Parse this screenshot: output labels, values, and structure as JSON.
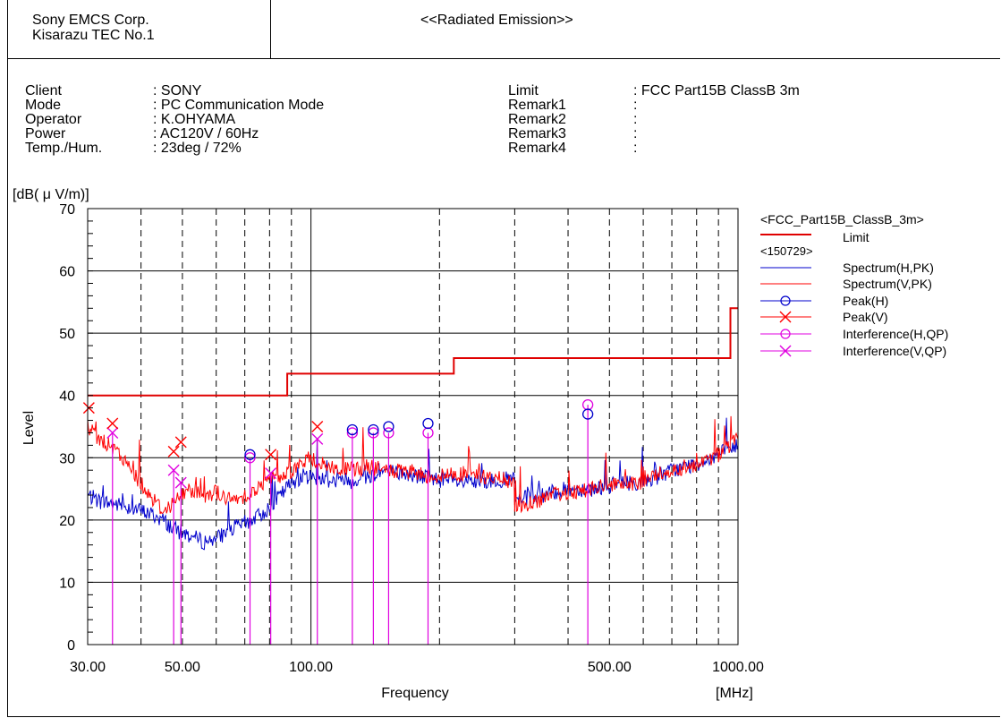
{
  "header": {
    "company": "Sony EMCS Corp.",
    "site": "Kisarazu TEC No.1",
    "title": "<<Radiated Emission>>"
  },
  "info_left": [
    {
      "label": "Client",
      "value": ": SONY"
    },
    {
      "label": "Mode",
      "value": ": PC Communication Mode"
    },
    {
      "label": "Operator",
      "value": ": K.OHYAMA"
    },
    {
      "label": "Power",
      "value": ": AC120V / 60Hz"
    },
    {
      "label": "Temp./Hum.",
      "value": ": 23deg / 72%"
    }
  ],
  "info_right": [
    {
      "label": "Limit",
      "value": ": FCC Part15B ClassB 3m"
    },
    {
      "label": "Remark1",
      "value": ":"
    },
    {
      "label": "Remark2",
      "value": ":"
    },
    {
      "label": "Remark3",
      "value": ":"
    },
    {
      "label": "Remark4",
      "value": ":"
    }
  ],
  "colors": {
    "limit": "#e00000",
    "spectrum_h": "#0000cc",
    "spectrum_v": "#ff0000",
    "interference": "#e000e0"
  },
  "chart_data": {
    "type": "line",
    "x_scale": "log",
    "xlim": [
      30,
      1000
    ],
    "ylim": [
      0,
      70
    ],
    "grid": true,
    "xlabel": "Frequency",
    "xunit": "[MHz]",
    "ylabel": "Level",
    "yunit": "[dB( μ V/m)]",
    "x_tick_labels": [
      {
        "value": 30,
        "label": "30.00"
      },
      {
        "value": 50,
        "label": "50.00"
      },
      {
        "value": 100,
        "label": "100.00"
      },
      {
        "value": 500,
        "label": "500.00"
      },
      {
        "value": 1000,
        "label": "1000.00"
      }
    ],
    "y_ticks": [
      0,
      10,
      20,
      30,
      40,
      50,
      60,
      70
    ],
    "legend_group_title": "<FCC_Part15B_ClassB_3m>",
    "legend_data_title": "<150729>",
    "legend": [
      {
        "key": "limit",
        "label": "Limit",
        "marker": "none"
      },
      {
        "key": "spectrum_h",
        "label": "Spectrum(H,PK)",
        "marker": "none"
      },
      {
        "key": "spectrum_v",
        "label": "Spectrum(V,PK)",
        "marker": "none"
      },
      {
        "key": "peak_h",
        "label": "Peak(H)",
        "marker": "circle"
      },
      {
        "key": "peak_v",
        "label": "Peak(V)",
        "marker": "cross"
      },
      {
        "key": "int_h",
        "label": "Interference(H,QP)",
        "marker": "circle"
      },
      {
        "key": "int_v",
        "label": "Interference(V,QP)",
        "marker": "cross"
      }
    ],
    "legend_placement": "right",
    "limit": [
      [
        30,
        40
      ],
      [
        88,
        40
      ],
      [
        88,
        43.5
      ],
      [
        216,
        43.5
      ],
      [
        216,
        46
      ],
      [
        960,
        46
      ],
      [
        960,
        54
      ],
      [
        1000,
        54
      ]
    ],
    "spectrum_h": [
      [
        30,
        24
      ],
      [
        32,
        23
      ],
      [
        35,
        22.5
      ],
      [
        38,
        22
      ],
      [
        42,
        21
      ],
      [
        45,
        20
      ],
      [
        48,
        18.5
      ],
      [
        52,
        17.5
      ],
      [
        56,
        16.5
      ],
      [
        60,
        17
      ],
      [
        65,
        18.5
      ],
      [
        70,
        19.5
      ],
      [
        75,
        20.5
      ],
      [
        80,
        22
      ],
      [
        85,
        24
      ],
      [
        90,
        26
      ],
      [
        95,
        27
      ],
      [
        100,
        27
      ],
      [
        110,
        26.5
      ],
      [
        120,
        26
      ],
      [
        135,
        27
      ],
      [
        150,
        28
      ],
      [
        160,
        27.5
      ],
      [
        180,
        27
      ],
      [
        200,
        26.5
      ],
      [
        220,
        26
      ],
      [
        250,
        26
      ],
      [
        280,
        26.5
      ],
      [
        299,
        26.5
      ],
      [
        300,
        23
      ],
      [
        320,
        23.5
      ],
      [
        350,
        24
      ],
      [
        400,
        25
      ],
      [
        450,
        25
      ],
      [
        500,
        25.5
      ],
      [
        550,
        26
      ],
      [
        600,
        26
      ],
      [
        650,
        27
      ],
      [
        700,
        28
      ],
      [
        800,
        29
      ],
      [
        900,
        30.5
      ],
      [
        1000,
        32
      ]
    ],
    "spectrum_v": [
      [
        30,
        35
      ],
      [
        32,
        33
      ],
      [
        35,
        31
      ],
      [
        38,
        28
      ],
      [
        42,
        24
      ],
      [
        45,
        21.5
      ],
      [
        48,
        23
      ],
      [
        52,
        25
      ],
      [
        56,
        24
      ],
      [
        60,
        24.5
      ],
      [
        65,
        23
      ],
      [
        70,
        24
      ],
      [
        75,
        25
      ],
      [
        80,
        26.5
      ],
      [
        85,
        27
      ],
      [
        90,
        28
      ],
      [
        95,
        29
      ],
      [
        100,
        30
      ],
      [
        105,
        29
      ],
      [
        110,
        28.5
      ],
      [
        120,
        28
      ],
      [
        135,
        28.5
      ],
      [
        150,
        28
      ],
      [
        170,
        27.5
      ],
      [
        200,
        27
      ],
      [
        220,
        27.5
      ],
      [
        250,
        27
      ],
      [
        280,
        26.5
      ],
      [
        299,
        26
      ],
      [
        300,
        22
      ],
      [
        320,
        22.5
      ],
      [
        350,
        23.5
      ],
      [
        400,
        24.5
      ],
      [
        450,
        25
      ],
      [
        500,
        25.5
      ],
      [
        550,
        25.5
      ],
      [
        600,
        26
      ],
      [
        650,
        27.5
      ],
      [
        700,
        28
      ],
      [
        800,
        29
      ],
      [
        900,
        30.5
      ],
      [
        1000,
        33
      ]
    ],
    "peak_h": [
      [
        72,
        30.5
      ],
      [
        125,
        34.5
      ],
      [
        140,
        34.5
      ],
      [
        152,
        35
      ],
      [
        188,
        35.5
      ],
      [
        445,
        37
      ]
    ],
    "peak_v": [
      [
        30.2,
        38
      ],
      [
        34.3,
        35.5
      ],
      [
        47.7,
        31
      ],
      [
        49.6,
        32.5
      ],
      [
        80.5,
        30.5
      ],
      [
        103.5,
        35
      ]
    ],
    "int_h": [
      [
        72,
        30
      ],
      [
        125,
        34
      ],
      [
        140,
        34
      ],
      [
        152,
        34
      ],
      [
        188,
        34
      ],
      [
        445,
        38.5
      ]
    ],
    "int_v": [
      [
        34.3,
        34
      ],
      [
        47.7,
        28
      ],
      [
        49.6,
        26
      ],
      [
        80.5,
        27.5
      ],
      [
        103.5,
        33
      ]
    ]
  }
}
